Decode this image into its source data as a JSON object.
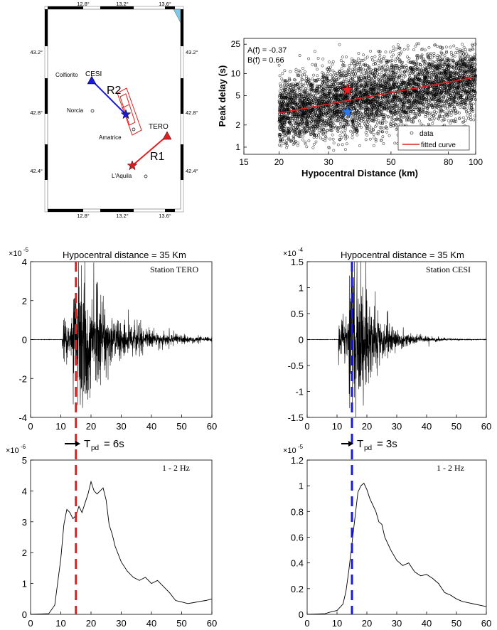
{
  "map": {
    "lon_ticks": [
      "12.8°",
      "13.2°",
      "13.6°"
    ],
    "lat_ticks": [
      "43.2°",
      "42.8°",
      "42.4°"
    ],
    "stations": [
      {
        "name": "CESI",
        "color": "#1a1adc"
      },
      {
        "name": "TERO",
        "color": "#e02020"
      }
    ],
    "towns": [
      "Colfiorito",
      "Norcia",
      "Amatrice",
      "L'Aquila"
    ],
    "paths": [
      "R2",
      "R1"
    ]
  },
  "scatter": {
    "xlabel": "Hypocentral Distance (km)",
    "ylabel": "Peak delay (s)",
    "x_ticks": [
      "15",
      "20",
      "30",
      "50",
      "80",
      "100"
    ],
    "y_ticks": [
      "1",
      "2",
      "5",
      "10",
      "25"
    ],
    "A": "A(f) = -0.37",
    "B": "B(f) = 0.66",
    "legend": [
      "data",
      "fitted curve"
    ]
  },
  "panels": [
    {
      "title": "Hypocentral distance = 35 Km",
      "station": "Station TERO",
      "exp": "-5",
      "y_ticks": [
        "4",
        "2",
        "0",
        "-2",
        "-4"
      ],
      "x_ticks": [
        "0",
        "10",
        "20",
        "30",
        "40",
        "50",
        "60"
      ],
      "tpd": "T",
      "tpd_sub": "pd",
      "tpd_val": "= 6s",
      "band": "1 - 2 Hz",
      "env_exp": "-6",
      "env_y_ticks": [
        "5",
        "4",
        "3",
        "2",
        "1",
        "0"
      ],
      "env_x_ticks": [
        "0",
        "10",
        "20",
        "30",
        "40",
        "50",
        "60"
      ]
    },
    {
      "title": "Hypocentral distance = 35 Km",
      "station": "Station CESI",
      "exp": "-4",
      "y_ticks": [
        "1.5",
        "1",
        "0.5",
        "0",
        "-0.5",
        "-1",
        "-1.5"
      ],
      "x_ticks": [
        "0",
        "10",
        "20",
        "30",
        "40",
        "50",
        "60"
      ],
      "tpd": "T",
      "tpd_sub": "pd",
      "tpd_val": "= 3s",
      "band": "1 - 2 Hz",
      "env_exp": "-5",
      "env_y_ticks": [
        "1.2",
        "1",
        "0.8",
        "0.6",
        "0.4",
        "0.2",
        "0"
      ],
      "env_x_ticks": [
        "0",
        "10",
        "20",
        "30",
        "40",
        "50",
        "60"
      ]
    }
  ],
  "chart_data": [
    {
      "type": "scatter",
      "title": "",
      "xlabel": "Hypocentral Distance (km)",
      "ylabel": "Peak delay (s)",
      "xscale": "log",
      "yscale": "log",
      "xlim": [
        15,
        100
      ],
      "ylim": [
        0.8,
        30
      ],
      "series": [
        {
          "name": "data",
          "marker": "circle",
          "values": "dense cloud 20-100 km, 1-25 s"
        },
        {
          "name": "fitted curve",
          "x": [
            20,
            100
          ],
          "y": [
            2.9,
            8.9
          ]
        }
      ],
      "highlights": [
        {
          "name": "TERO",
          "x": 35,
          "y": 6
        },
        {
          "name": "CESI",
          "x": 35,
          "y": 3
        }
      ]
    },
    {
      "type": "line",
      "title": "Station TERO seismogram",
      "xlim": [
        0,
        60
      ],
      "ylim": [
        -4,
        4
      ],
      "y_exponent": -5,
      "marker_x": 15
    },
    {
      "type": "line",
      "title": "Station CESI seismogram",
      "xlim": [
        0,
        60
      ],
      "ylim": [
        -1.5,
        1.5
      ],
      "y_exponent": -4,
      "marker_x": 15
    },
    {
      "type": "line",
      "title": "TERO envelope 1 - 2 Hz",
      "xlim": [
        0,
        60
      ],
      "ylim": [
        0,
        5
      ],
      "y_exponent": -6,
      "x": [
        0,
        6,
        8,
        10,
        11,
        12,
        13,
        14,
        15,
        16,
        17,
        18,
        19,
        20,
        21,
        22,
        23,
        24,
        25,
        26,
        27,
        28,
        30,
        32,
        34,
        36,
        38,
        40,
        42,
        44,
        46,
        48,
        50,
        52,
        54,
        56,
        58,
        60
      ],
      "y": [
        0,
        0.02,
        0.3,
        1.8,
        2.9,
        3.4,
        3.3,
        3.1,
        3.2,
        3.5,
        3.3,
        3.6,
        3.9,
        4.3,
        4.0,
        3.9,
        4.0,
        4.1,
        3.7,
        2.9,
        2.6,
        2.2,
        1.7,
        1.4,
        1.2,
        1.1,
        1.2,
        1.0,
        1.1,
        0.9,
        0.7,
        0.45,
        0.4,
        0.35,
        0.38,
        0.42,
        0.45,
        0.5
      ]
    },
    {
      "type": "line",
      "title": "CESI envelope 1 - 2 Hz",
      "xlim": [
        0,
        60
      ],
      "ylim": [
        0,
        1.2
      ],
      "y_exponent": -5,
      "x": [
        0,
        6,
        8,
        10,
        12,
        13,
        14,
        15,
        16,
        17,
        18,
        19,
        20,
        21,
        22,
        23,
        24,
        25,
        26,
        27,
        28,
        30,
        32,
        34,
        36,
        38,
        40,
        42,
        44,
        46,
        48,
        50,
        52,
        54,
        56,
        58,
        60
      ],
      "y": [
        0,
        0.005,
        0.02,
        0.03,
        0.08,
        0.18,
        0.35,
        0.55,
        0.75,
        0.95,
        1.0,
        1.02,
        0.97,
        0.9,
        0.85,
        0.8,
        0.72,
        0.7,
        0.6,
        0.55,
        0.5,
        0.42,
        0.38,
        0.4,
        0.33,
        0.3,
        0.31,
        0.28,
        0.24,
        0.17,
        0.15,
        0.12,
        0.1,
        0.09,
        0.08,
        0.07,
        0.06
      ]
    }
  ]
}
